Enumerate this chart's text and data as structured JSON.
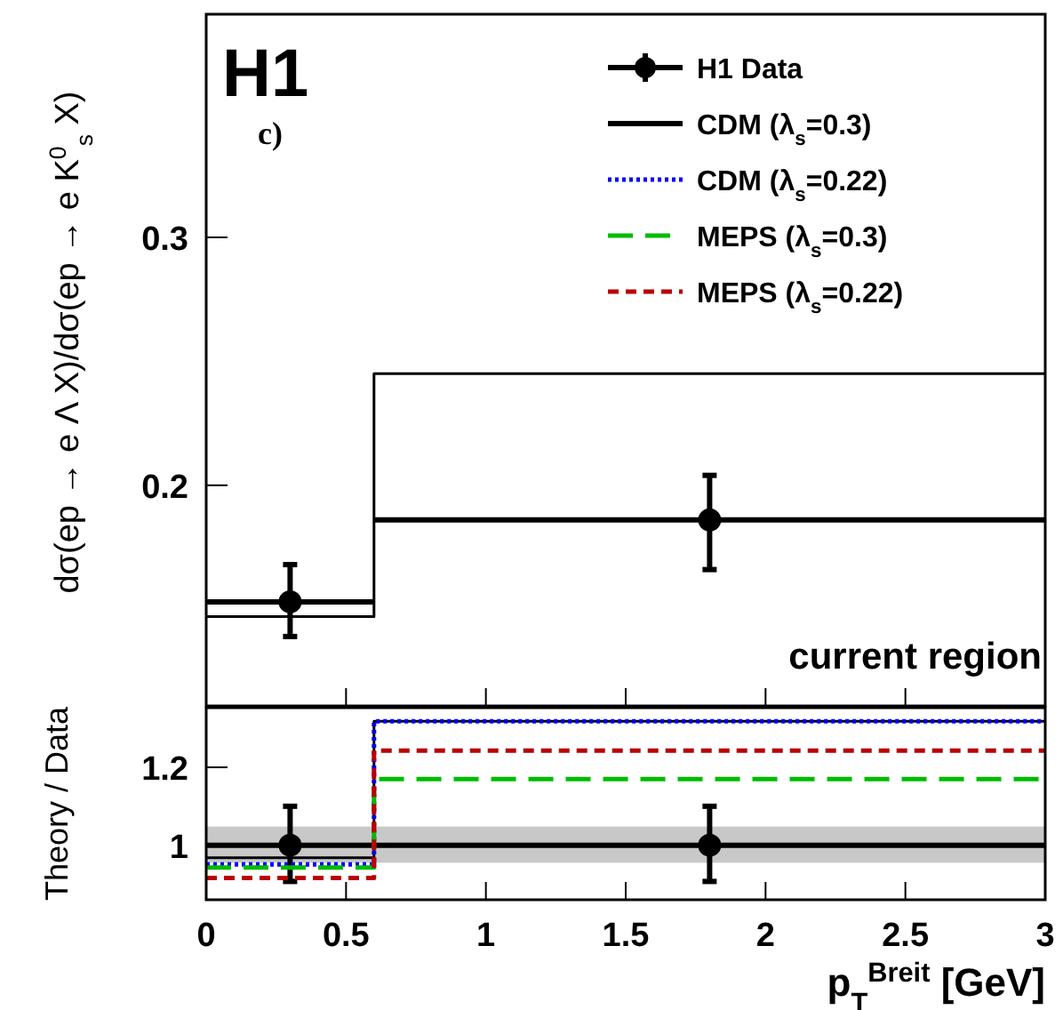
{
  "chart_data": [
    {
      "type": "step",
      "ylabel": "dσ(ep → e Λ X)/dσ(ep → e K$^{0}$$_{s}$ X)",
      "annotations": [
        "H1",
        "c)",
        "current region"
      ],
      "xlim": [
        0,
        3
      ],
      "xticks": [
        {
          "value": 0,
          "label": null
        },
        {
          "value": 0.5,
          "label": null
        },
        {
          "value": 1,
          "label": null
        },
        {
          "value": 1.5,
          "label": null
        },
        {
          "value": 2,
          "label": null
        },
        {
          "value": 2.5,
          "label": null
        },
        {
          "value": 3,
          "label": null
        }
      ],
      "ylim": [
        0.111,
        0.39
      ],
      "yticks": [
        0.2,
        0.3
      ],
      "tick_labels": "y",
      "grid": false,
      "legend": "top right",
      "series": [
        {
          "type": "scatter",
          "name": "H1 Data",
          "color": "#000000",
          "marker": "circle",
          "x": [
            0.3,
            1.8
          ],
          "values": [
            0.153,
            0.186
          ],
          "errors": [
            [
              0.139,
              0.168
            ],
            [
              0.166,
              0.204
            ]
          ],
          "xerrors": [
            0.3,
            1.2
          ]
        },
        {
          "type": "step",
          "name": "CDM (λ$_{s}$=0.3)",
          "color": "#000000",
          "line_style": "solid",
          "x": [
            0,
            0.6,
            3
          ],
          "values": [
            0.147,
            0.245,
            0.245
          ]
        }
      ]
    },
    {
      "type": "step",
      "ylabel": "Theory / Data",
      "xlabel": "p$_{T}$$^{Breit}$ [GeV]",
      "xlim": [
        0,
        3
      ],
      "xticks": [
        0,
        0.5,
        1,
        1.5,
        2,
        2.5,
        3
      ],
      "ylim": [
        0.86,
        1.353
      ],
      "yticks": [
        1,
        1.2
      ],
      "grid": false,
      "legend": false,
      "bands": [
        {
          "axis": "y",
          "from": 0.955,
          "to": 1.048,
          "color": "#c8c8c8"
        }
      ],
      "ref_lines": [
        {
          "axis": "y",
          "value": 1,
          "color": "#000000"
        }
      ],
      "series": [
        {
          "type": "scatter",
          "color": "#000000",
          "marker": "circle",
          "x": [
            0.3,
            1.8
          ],
          "values": [
            1,
            1
          ],
          "errors": [
            [
              0.907,
              1.1
            ],
            [
              0.907,
              1.1
            ]
          ]
        },
        {
          "type": "step",
          "color": "#000000",
          "line_style": "solid",
          "x": [
            0,
            0.6,
            3
          ],
          "values": [
            0.968,
            1.318,
            1.318
          ]
        },
        {
          "type": "step",
          "name": "CDM (λ$_{s}$=0.22)",
          "color": "#0000ff",
          "line_style": "dotted",
          "x": [
            0,
            0.6,
            3
          ],
          "values": [
            0.951,
            1.318,
            1.318
          ]
        },
        {
          "type": "step",
          "name": "MEPS (λ$_{s}$=0.3)",
          "color": "#00bb00",
          "line_style": "dashed",
          "x": [
            0,
            0.6,
            3
          ],
          "values": [
            0.943,
            1.17,
            1.17
          ]
        },
        {
          "type": "step",
          "name": "MEPS (λ$_{s}$=0.22)",
          "color": "#bb0000",
          "line_style": "dashed",
          "x": [
            0,
            0.6,
            3
          ],
          "values": [
            0.916,
            1.243,
            1.243
          ]
        }
      ]
    }
  ]
}
